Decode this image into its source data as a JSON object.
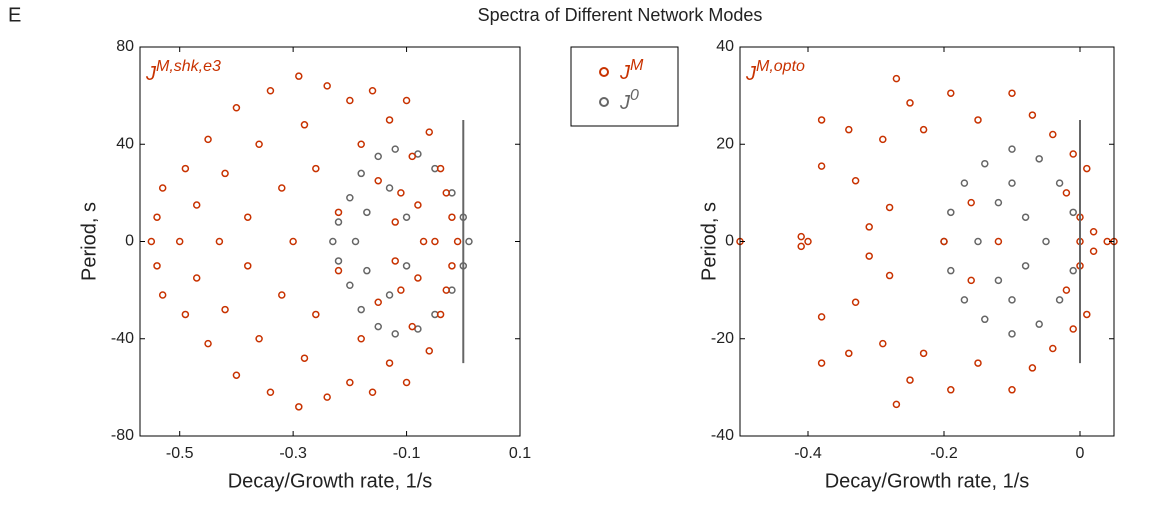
{
  "figure": {
    "label": "E",
    "title": "Spectra of Different Network Modes"
  },
  "chart_data": [
    {
      "type": "scatter",
      "annotation": "JM,shk,e3",
      "xlabel": "Decay/Growth rate, 1/s",
      "ylabel": "Period, s",
      "xlim": [
        -0.57,
        0.1
      ],
      "ylim": [
        -80,
        80
      ],
      "xticks": [
        -0.5,
        -0.3,
        -0.1,
        0.1
      ],
      "yticks": [
        -80,
        -40,
        0,
        40,
        80
      ],
      "legend": "outside-right",
      "vline": {
        "x": 0,
        "y": [
          -50,
          50
        ]
      },
      "series": [
        {
          "name": "JM",
          "color": "#c83200",
          "x": [
            -0.55,
            -0.54,
            -0.54,
            -0.53,
            -0.53,
            -0.5,
            -0.49,
            -0.49,
            -0.47,
            -0.47,
            -0.45,
            -0.45,
            -0.43,
            -0.42,
            -0.42,
            -0.4,
            -0.4,
            -0.38,
            -0.38,
            -0.36,
            -0.36,
            -0.34,
            -0.34,
            -0.32,
            -0.32,
            -0.3,
            -0.29,
            -0.29,
            -0.28,
            -0.28,
            -0.26,
            -0.26,
            -0.24,
            -0.24,
            -0.22,
            -0.22,
            -0.2,
            -0.2,
            -0.18,
            -0.18,
            -0.16,
            -0.16,
            -0.15,
            -0.15,
            -0.13,
            -0.13,
            -0.12,
            -0.12,
            -0.1,
            -0.1,
            -0.09,
            -0.09,
            -0.08,
            -0.08,
            -0.06,
            -0.06,
            -0.05,
            -0.04,
            -0.04,
            -0.03,
            -0.03,
            -0.02,
            -0.02,
            -0.01,
            -0.07,
            -0.11,
            -0.11
          ],
          "y": [
            0,
            10,
            -10,
            22,
            -22,
            0,
            30,
            -30,
            15,
            -15,
            42,
            -42,
            0,
            28,
            -28,
            55,
            -55,
            10,
            -10,
            40,
            -40,
            62,
            -62,
            22,
            -22,
            0,
            68,
            -68,
            48,
            -48,
            30,
            -30,
            64,
            -64,
            12,
            -12,
            58,
            -58,
            40,
            -40,
            62,
            -62,
            25,
            -25,
            50,
            -50,
            8,
            -8,
            58,
            -58,
            35,
            -35,
            15,
            -15,
            45,
            -45,
            0,
            30,
            -30,
            20,
            -20,
            10,
            -10,
            0,
            0,
            20,
            -20
          ]
        },
        {
          "name": "J0",
          "color": "#666666",
          "x": [
            -0.23,
            -0.22,
            -0.22,
            -0.2,
            -0.2,
            -0.18,
            -0.18,
            -0.15,
            -0.15,
            -0.12,
            -0.12,
            -0.08,
            -0.08,
            -0.05,
            -0.05,
            -0.02,
            -0.02,
            0,
            0,
            0.01,
            -0.19,
            -0.17,
            -0.17,
            -0.13,
            -0.13,
            -0.1,
            -0.1
          ],
          "y": [
            0,
            8,
            -8,
            18,
            -18,
            28,
            -28,
            35,
            -35,
            38,
            -38,
            36,
            -36,
            30,
            -30,
            20,
            -20,
            10,
            -10,
            0,
            0,
            12,
            -12,
            22,
            -22,
            10,
            -10
          ]
        }
      ]
    },
    {
      "type": "scatter",
      "annotation": "JM,opto",
      "xlabel": "Decay/Growth rate, 1/s",
      "ylabel": "Period, s",
      "xlim": [
        -0.5,
        0.05
      ],
      "ylim": [
        -40,
        40
      ],
      "xticks": [
        -0.4,
        -0.2,
        0
      ],
      "yticks": [
        -40,
        -20,
        0,
        20,
        40
      ],
      "vline": {
        "x": 0,
        "y": [
          -25,
          25
        ]
      },
      "series": [
        {
          "name": "JM",
          "color": "#c83200",
          "x": [
            -0.5,
            -0.41,
            -0.41,
            -0.4,
            -0.38,
            -0.38,
            -0.38,
            -0.38,
            -0.34,
            -0.34,
            -0.33,
            -0.33,
            -0.31,
            -0.31,
            -0.29,
            -0.29,
            -0.28,
            -0.28,
            -0.27,
            -0.27,
            -0.25,
            -0.25,
            -0.23,
            -0.23,
            -0.2,
            -0.19,
            -0.19,
            -0.15,
            -0.15,
            -0.1,
            -0.1,
            -0.07,
            -0.07,
            -0.04,
            -0.04,
            -0.02,
            -0.02,
            0,
            0,
            0,
            0.01,
            0.01,
            0.02,
            0.02,
            0.04,
            0.05,
            -0.01,
            -0.01,
            -0.12,
            -0.16,
            -0.16
          ],
          "y": [
            0,
            1,
            -1,
            0,
            25,
            -25,
            15.5,
            -15.5,
            23,
            -23,
            12.5,
            -12.5,
            3,
            -3,
            21,
            -21,
            7,
            -7,
            33.5,
            -33.5,
            28.5,
            -28.5,
            23,
            -23,
            0,
            30.5,
            -30.5,
            25,
            -25,
            30.5,
            -30.5,
            26,
            -26,
            22,
            -22,
            10,
            -10,
            0,
            5,
            -5,
            15,
            -15,
            2,
            -2,
            0,
            0,
            18,
            -18,
            0,
            8,
            -8
          ]
        },
        {
          "name": "J0",
          "color": "#666666",
          "x": [
            -0.2,
            -0.19,
            -0.19,
            -0.17,
            -0.17,
            -0.14,
            -0.14,
            -0.1,
            -0.1,
            -0.06,
            -0.06,
            -0.03,
            -0.03,
            -0.01,
            -0.01,
            -0.15,
            -0.12,
            -0.12,
            -0.08,
            -0.08,
            -0.05,
            -0.1,
            -0.1
          ],
          "y": [
            0,
            6,
            -6,
            12,
            -12,
            16,
            -16,
            19,
            -19,
            17,
            -17,
            12,
            -12,
            6,
            -6,
            0,
            8,
            -8,
            5,
            -5,
            0,
            12,
            -12
          ]
        }
      ]
    }
  ]
}
